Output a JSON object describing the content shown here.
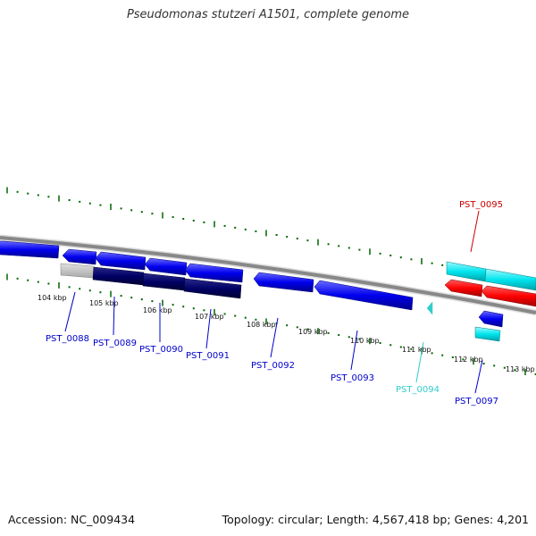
{
  "title": "Pseudomonas stutzeri A1501, complete genome",
  "accession": "Accession: NC_009434",
  "stats": "Topology: circular; Length: 4,567,418 bp; Genes: 4,201",
  "colors": {
    "forward_gene": "#0000ee",
    "dark_gene": "#000066",
    "pseudo_gene": "#c0c0c0",
    "rna_gene": "#ff0000",
    "trna_gene": "#00e5ee",
    "backbone": "#888888",
    "tick": "#006600",
    "label_blue": "#0000cc",
    "label_red": "#cc0000",
    "label_cyan": "#33cccc"
  },
  "kbp_labels": [
    "104 kbp",
    "105 kbp",
    "106 kbp",
    "107 kbp",
    "108 kbp",
    "109 kbp",
    "110 kbp",
    "111 kbp",
    "112 kbp",
    "113 kbp"
  ],
  "gene_labels": [
    {
      "id": "pst-0088",
      "text": "PST_0088",
      "color": "#0000cc"
    },
    {
      "id": "pst-0089",
      "text": "PST_0089",
      "color": "#0000cc"
    },
    {
      "id": "pst-0090",
      "text": "PST_0090",
      "color": "#0000cc"
    },
    {
      "id": "pst-0091",
      "text": "PST_0091",
      "color": "#0000cc"
    },
    {
      "id": "pst-0092",
      "text": "PST_0092",
      "color": "#0000cc"
    },
    {
      "id": "pst-0093",
      "text": "PST_0093",
      "color": "#0000cc"
    },
    {
      "id": "pst-0094",
      "text": "PST_0094",
      "color": "#33cccc"
    },
    {
      "id": "pst-0095",
      "text": "PST_0095",
      "color": "#cc0000"
    },
    {
      "id": "pst-0097",
      "text": "PST_0097",
      "color": "#0000cc"
    }
  ]
}
